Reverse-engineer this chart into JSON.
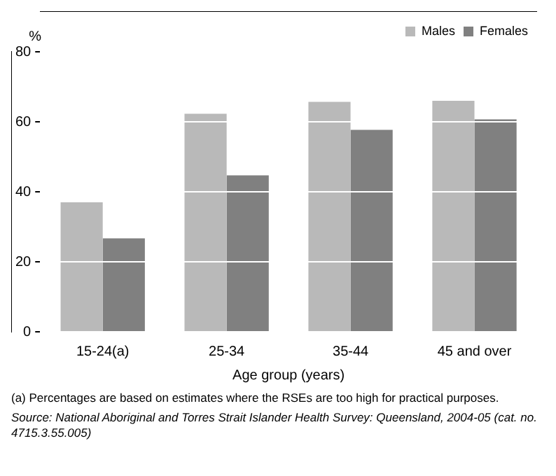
{
  "chart_data": {
    "type": "bar",
    "xlabel": "Age group (years)",
    "ylabel": "%",
    "categories": [
      "15-24(a)",
      "25-34",
      "35-44",
      "45 and over"
    ],
    "series": [
      {
        "name": "Males",
        "color": "#b9b9b9",
        "values": [
          37,
          62.3,
          65.7,
          66
        ]
      },
      {
        "name": "Females",
        "color": "#808080",
        "values": [
          26.7,
          44.7,
          57.7,
          60.7
        ]
      }
    ],
    "ylim": [
      0,
      80
    ],
    "yticks": [
      0,
      20,
      40,
      60,
      80
    ],
    "grid": "y",
    "legend": "top right",
    "annotations": [
      "(a) Percentages are based on estimates where the RSEs are too high for practical purposes.",
      "Source: National Aboriginal and Torres Strait Islander Health Survey: Queensland, 2004-05 (cat. no. 4715.3.55.005)"
    ]
  }
}
